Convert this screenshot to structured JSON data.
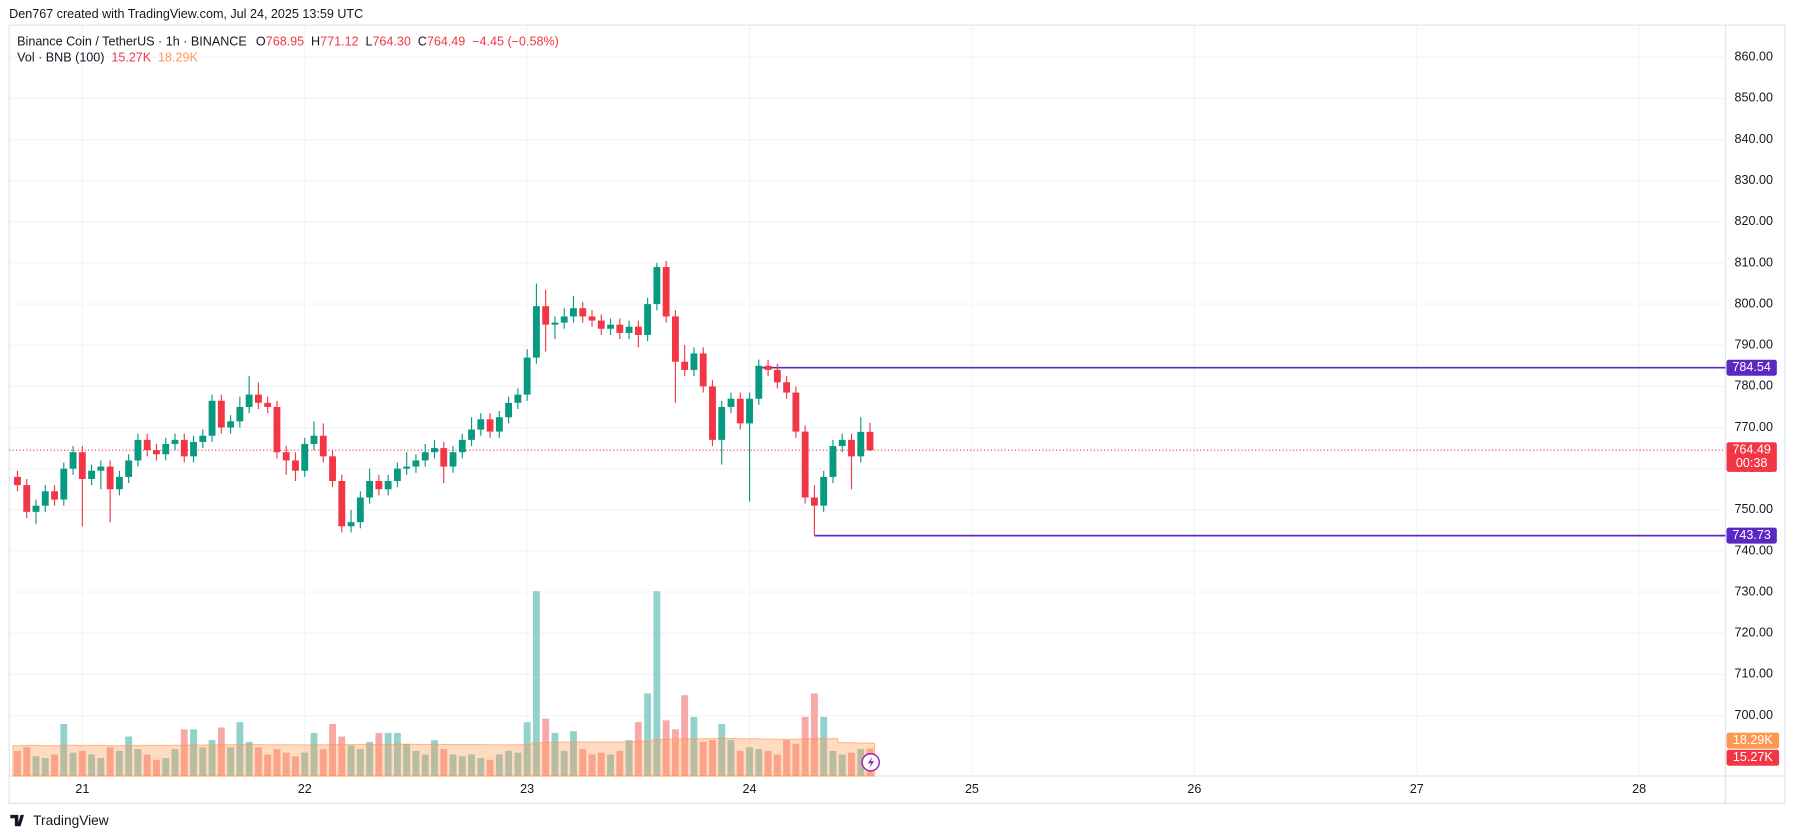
{
  "header": {
    "attribution": "Den767 created with TradingView.com, Jul 24, 2025 13:59 UTC",
    "logo": "TradingView"
  },
  "chart_data": {
    "type": "candlestick",
    "symbol": "Binance Coin / TetherUS · 1h · BINANCE",
    "legend": [
      {
        "label": "O",
        "value": "768.95"
      },
      {
        "label": "H",
        "value": "771.12"
      },
      {
        "label": "L",
        "value": "764.30"
      },
      {
        "label": "C",
        "value": "764.49"
      }
    ],
    "change": "−4.45 (−0.58%)",
    "up_color": "#089981",
    "down_color": "#f23645",
    "ohlc": [
      [
        758.0,
        759.5,
        754.5,
        756.0
      ],
      [
        756.0,
        757.5,
        748.0,
        749.5
      ],
      [
        749.5,
        752.5,
        746.5,
        751.0
      ],
      [
        751.0,
        756.0,
        749.5,
        754.5
      ],
      [
        754.5,
        756.0,
        751.0,
        752.5
      ],
      [
        752.5,
        761.5,
        751.0,
        760.0
      ],
      [
        760.0,
        765.5,
        758.5,
        764.0
      ],
      [
        764.0,
        765.5,
        746.0,
        757.5
      ],
      [
        757.5,
        761.0,
        756.0,
        759.5
      ],
      [
        759.5,
        762.0,
        755.0,
        760.5
      ],
      [
        760.5,
        762.0,
        747.0,
        755.0
      ],
      [
        755.0,
        759.5,
        753.5,
        758.0
      ],
      [
        758.0,
        763.5,
        756.5,
        762.0
      ],
      [
        762.0,
        768.5,
        760.5,
        767.0
      ],
      [
        767.0,
        768.5,
        763.0,
        764.5
      ],
      [
        764.5,
        766.0,
        762.0,
        763.5
      ],
      [
        763.5,
        767.5,
        762.0,
        766.0
      ],
      [
        766.0,
        768.5,
        764.5,
        767.0
      ],
      [
        767.0,
        768.5,
        761.5,
        763.0
      ],
      [
        763.0,
        768.0,
        761.5,
        766.5
      ],
      [
        766.5,
        769.5,
        765.0,
        768.0
      ],
      [
        768.0,
        778.0,
        766.5,
        776.5
      ],
      [
        776.5,
        778.0,
        768.5,
        770.0
      ],
      [
        770.0,
        773.0,
        768.5,
        771.5
      ],
      [
        771.5,
        777.5,
        770.0,
        775.0
      ],
      [
        775.0,
        782.5,
        773.5,
        778.0
      ],
      [
        778.0,
        781.0,
        774.5,
        776.0
      ],
      [
        776.0,
        777.5,
        773.5,
        775.0
      ],
      [
        775.0,
        776.5,
        762.5,
        764.0
      ],
      [
        764.0,
        765.5,
        758.5,
        762.0
      ],
      [
        762.0,
        764.0,
        757.0,
        759.5
      ],
      [
        759.5,
        767.5,
        758.0,
        766.0
      ],
      [
        766.0,
        771.5,
        764.5,
        768.0
      ],
      [
        768.0,
        771.0,
        761.5,
        763.0
      ],
      [
        763.0,
        764.5,
        755.5,
        757.0
      ],
      [
        757.0,
        758.5,
        744.5,
        746.0
      ],
      [
        746.0,
        750.0,
        744.5,
        747.0
      ],
      [
        747.0,
        754.5,
        745.5,
        753.0
      ],
      [
        753.0,
        760.0,
        751.5,
        757.0
      ],
      [
        757.0,
        758.5,
        753.5,
        755.0
      ],
      [
        755.0,
        758.5,
        753.5,
        757.0
      ],
      [
        757.0,
        761.5,
        755.5,
        760.0
      ],
      [
        760.0,
        764.0,
        758.5,
        760.5
      ],
      [
        760.5,
        763.5,
        759.0,
        762.0
      ],
      [
        762.0,
        766.0,
        760.5,
        764.0
      ],
      [
        764.0,
        767.0,
        762.5,
        765.0
      ],
      [
        765.0,
        766.5,
        756.5,
        760.5
      ],
      [
        760.5,
        765.5,
        759.0,
        764.0
      ],
      [
        764.0,
        768.5,
        762.5,
        767.0
      ],
      [
        767.0,
        772.5,
        765.5,
        769.5
      ],
      [
        769.5,
        773.5,
        768.0,
        772.0
      ],
      [
        772.0,
        773.5,
        767.5,
        769.0
      ],
      [
        769.0,
        774.0,
        767.5,
        772.5
      ],
      [
        772.5,
        777.5,
        771.0,
        776.0
      ],
      [
        776.0,
        779.5,
        774.5,
        778.0
      ],
      [
        778.0,
        789.0,
        776.5,
        787.0
      ],
      [
        787.0,
        805.0,
        785.5,
        799.5
      ],
      [
        799.5,
        803.5,
        788.5,
        795.0
      ],
      [
        795.0,
        797.0,
        791.5,
        795.5
      ],
      [
        795.5,
        799.0,
        794.0,
        797.0
      ],
      [
        797.0,
        802.0,
        795.5,
        799.0
      ],
      [
        799.0,
        800.5,
        795.5,
        797.0
      ],
      [
        797.0,
        798.5,
        794.5,
        796.0
      ],
      [
        796.0,
        797.5,
        792.5,
        794.0
      ],
      [
        794.0,
        796.5,
        792.5,
        795.0
      ],
      [
        795.0,
        796.5,
        791.5,
        793.0
      ],
      [
        793.0,
        796.0,
        791.5,
        794.5
      ],
      [
        794.5,
        796.0,
        789.5,
        792.5
      ],
      [
        792.5,
        801.5,
        791.0,
        800.0
      ],
      [
        800.0,
        810.0,
        798.5,
        809.0
      ],
      [
        809.0,
        810.5,
        795.5,
        797.0
      ],
      [
        797.0,
        798.5,
        776.0,
        786.0
      ],
      [
        786.0,
        790.0,
        782.5,
        784.0
      ],
      [
        784.0,
        789.5,
        782.5,
        788.0
      ],
      [
        788.0,
        789.5,
        778.5,
        780.0
      ],
      [
        780.0,
        781.5,
        765.5,
        767.0
      ],
      [
        767.0,
        776.5,
        761.0,
        775.0
      ],
      [
        775.0,
        778.5,
        773.5,
        777.0
      ],
      [
        777.0,
        778.5,
        769.5,
        771.0
      ],
      [
        771.0,
        778.5,
        752.0,
        777.0
      ],
      [
        777.0,
        786.5,
        775.5,
        785.0
      ],
      [
        785.0,
        786.5,
        782.5,
        784.0
      ],
      [
        784.0,
        785.5,
        779.5,
        781.0
      ],
      [
        781.0,
        782.5,
        777.0,
        778.5
      ],
      [
        778.5,
        780.0,
        767.5,
        769.0
      ],
      [
        769.0,
        770.5,
        751.5,
        753.0
      ],
      [
        753.0,
        756.0,
        743.73,
        751.0
      ],
      [
        751.0,
        759.5,
        749.5,
        758.0
      ],
      [
        758.0,
        767.0,
        756.5,
        765.5
      ],
      [
        765.5,
        768.5,
        764.0,
        767.0
      ],
      [
        767.0,
        768.5,
        755.0,
        763.0
      ],
      [
        763.0,
        772.5,
        761.5,
        768.95
      ],
      [
        768.95,
        771.12,
        764.3,
        764.49
      ]
    ],
    "volume": {
      "title": "Vol · BNB (100)",
      "up_color": "#92d2cc",
      "down_color": "#f7a9a7",
      "values": [
        14,
        16,
        11,
        10,
        12,
        29,
        13,
        14,
        12,
        10,
        16,
        14,
        22,
        15,
        12,
        9,
        10,
        15,
        26,
        26,
        16,
        20,
        27,
        16,
        30,
        19,
        16,
        12,
        15,
        13,
        11,
        13,
        24,
        15,
        29,
        22,
        17,
        15,
        19,
        24,
        24,
        24,
        18,
        14,
        12,
        20,
        15,
        12,
        11,
        12,
        10,
        9,
        12,
        14,
        13,
        30,
        103,
        32,
        24,
        14,
        25,
        15,
        12,
        13,
        12,
        14,
        20,
        30,
        46,
        103,
        31,
        26,
        45,
        33,
        19,
        20,
        29,
        20,
        14,
        16,
        15,
        14,
        12,
        20,
        18,
        33,
        46,
        33,
        14,
        12,
        13,
        15,
        15.27
      ],
      "current": {
        "value": 15.27,
        "label": "15.27K"
      },
      "ma": {
        "color": "#ff9850",
        "values": [
          16.9,
          17.0,
          17.0,
          16.9,
          16.9,
          17.1,
          17.1,
          17.0,
          17.0,
          17.0,
          16.9,
          16.9,
          17.0,
          17.0,
          17.0,
          17.0,
          17.0,
          17.1,
          17.2,
          17.3,
          17.3,
          17.3,
          17.4,
          17.4,
          17.5,
          17.5,
          17.5,
          17.4,
          17.4,
          17.4,
          17.4,
          17.3,
          17.4,
          17.4,
          17.5,
          17.5,
          17.5,
          17.5,
          17.5,
          17.6,
          17.6,
          17.7,
          17.6,
          17.6,
          17.6,
          17.6,
          17.6,
          17.5,
          17.5,
          17.5,
          17.5,
          17.4,
          17.4,
          17.4,
          17.4,
          17.6,
          18.5,
          18.7,
          18.8,
          18.9,
          19.0,
          19.0,
          19.0,
          19.0,
          19.0,
          19.0,
          19.1,
          19.2,
          19.4,
          20.3,
          20.4,
          20.5,
          20.7,
          20.8,
          20.8,
          20.8,
          20.9,
          20.9,
          20.8,
          20.8,
          20.7,
          20.6,
          20.5,
          20.4,
          20.5,
          20.6,
          20.8,
          20.9,
          20.8,
          18.6,
          18.5,
          18.4,
          18.29
        ],
        "current": {
          "value": 18.29,
          "label": "18.29K"
        }
      }
    },
    "last_price": {
      "value": 764.49,
      "countdown": "00:38"
    },
    "levels": [
      {
        "value": 784.54,
        "from": 80,
        "color": "#5b28c4"
      },
      {
        "value": 743.73,
        "from": 86,
        "color": "#5b28c4"
      }
    ],
    "xlim": [
      -0.65,
      184.3
    ],
    "xticks": [
      {
        "value": 7,
        "label": "21"
      },
      {
        "value": 31,
        "label": "22"
      },
      {
        "value": 55,
        "label": "23"
      },
      {
        "value": 79,
        "label": "24"
      },
      {
        "value": 103,
        "label": "25"
      },
      {
        "value": 127,
        "label": "26"
      },
      {
        "value": 151,
        "label": "27"
      },
      {
        "value": 175,
        "label": "28"
      }
    ],
    "ylim": [
      685.3,
      867.8
    ],
    "yticks": [
      {
        "value": 700,
        "label": "700.00"
      },
      {
        "value": 710,
        "label": "710.00"
      },
      {
        "value": 720,
        "label": "720.00"
      },
      {
        "value": 730,
        "label": "730.00"
      },
      {
        "value": 740,
        "label": "740.00"
      },
      {
        "value": 750,
        "label": "750.00"
      },
      {
        "value": 760,
        "label": "760.00"
      },
      {
        "value": 770,
        "label": "770.00"
      },
      {
        "value": 780,
        "label": "780.00"
      },
      {
        "value": 790,
        "label": "790.00"
      },
      {
        "value": 800,
        "label": "800.00"
      },
      {
        "value": 810,
        "label": "810.00"
      },
      {
        "value": 820,
        "label": "820.00"
      },
      {
        "value": 830,
        "label": "830.00"
      },
      {
        "value": 840,
        "label": "840.00"
      },
      {
        "value": 850,
        "label": "850.00"
      },
      {
        "value": 860,
        "label": "860.00"
      }
    ],
    "grid": true
  }
}
